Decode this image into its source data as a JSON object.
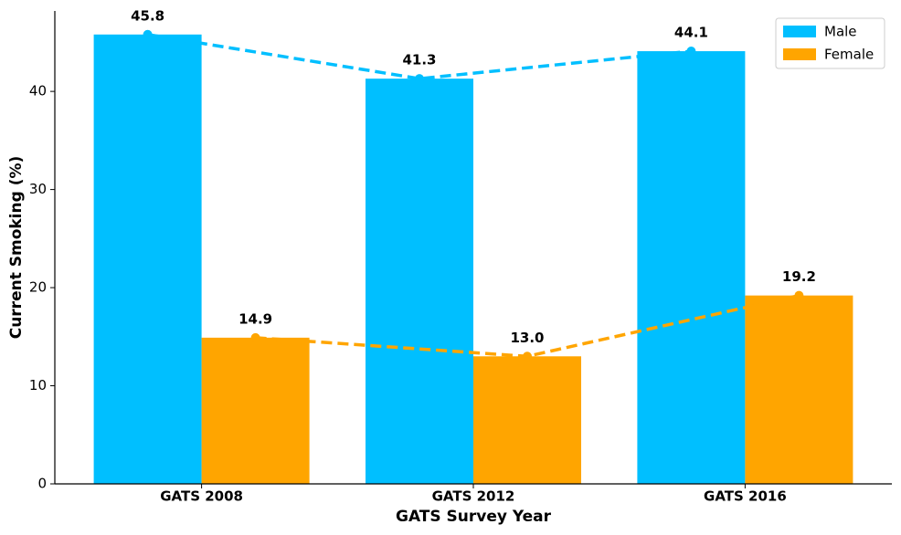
{
  "chart_data": {
    "type": "bar",
    "x_label": "GATS Survey Year",
    "y_label": "Current Smoking (%)",
    "categories": [
      "GATS 2008",
      "GATS 2012",
      "GATS 2016"
    ],
    "series": [
      {
        "name": "Male",
        "color": "#00bfff",
        "values": [
          45.8,
          41.3,
          44.1
        ],
        "value_labels": [
          "45.8",
          "41.3",
          "44.1"
        ]
      },
      {
        "name": "Female",
        "color": "#ffa500",
        "values": [
          14.9,
          13.0,
          19.2
        ],
        "value_labels": [
          "14.9",
          "13.0",
          "19.2"
        ]
      }
    ],
    "line_overlay": true,
    "ylim": [
      0,
      48.2
    ],
    "yticks": [
      0,
      10,
      20,
      30,
      40
    ],
    "grid": false,
    "legend": "upper right"
  }
}
